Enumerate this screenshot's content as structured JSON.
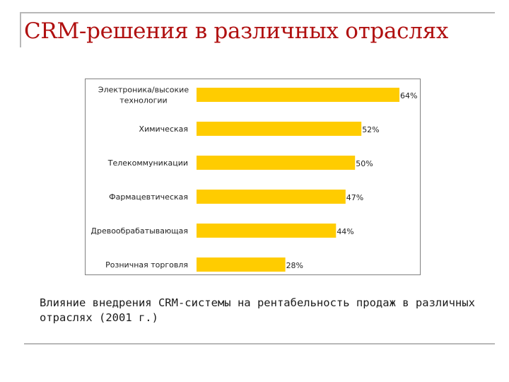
{
  "title": "CRM-решения в различных отраслях",
  "caption": "Влияние внедрения CRM-системы на рентабельность продаж в различных отраслях (2001 г.)",
  "colors": {
    "bar": "#ffcc00",
    "title": "#b01010"
  },
  "chart_data": {
    "type": "bar",
    "orientation": "horizontal",
    "categories": [
      [
        "Электроника/высокие",
        "технологии"
      ],
      [
        "Химическая"
      ],
      [
        "Телекоммуникации"
      ],
      [
        "Фармацевтическая"
      ],
      [
        "Древообрабатывающая"
      ],
      [
        "Розничная торговля"
      ]
    ],
    "values": [
      64,
      52,
      50,
      47,
      44,
      28
    ],
    "value_labels": [
      "64%",
      "52%",
      "50%",
      "47%",
      "44%",
      "28%"
    ],
    "xlim": [
      0,
      64
    ],
    "grid": false,
    "legend": "none"
  }
}
